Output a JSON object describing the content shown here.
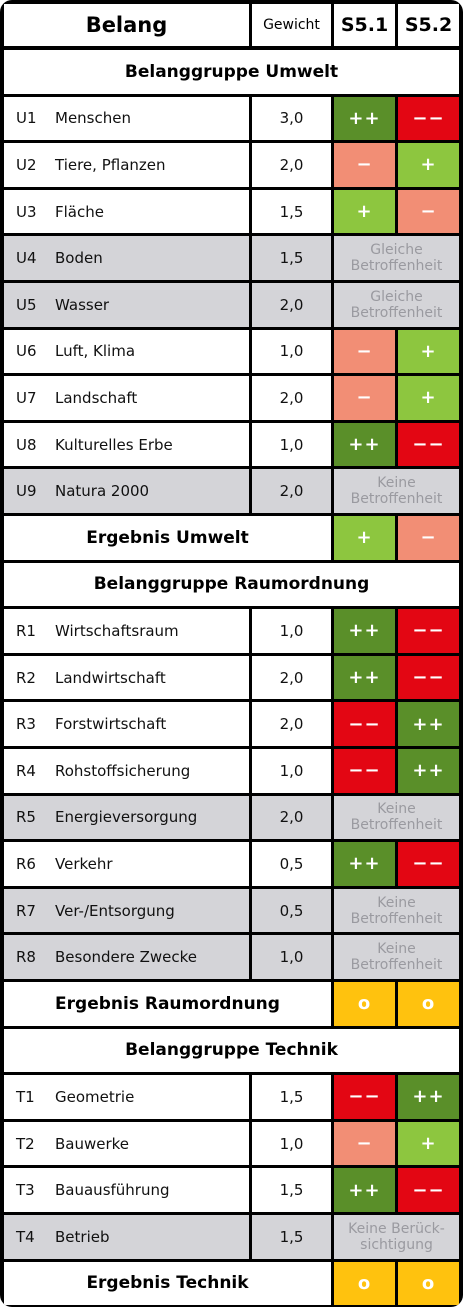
{
  "header": {
    "belang": "Belang",
    "gewicht": "Gewicht",
    "s51": "S5.1",
    "s52": "S5.2"
  },
  "colors": {
    "dark_green": "#5a8f29",
    "light_green": "#8dc63f",
    "red": "#e30613",
    "salmon": "#f28e75",
    "yellow": "#ffc20e",
    "grey_row": "#d4d4d8"
  },
  "rows": [
    {
      "type": "group",
      "label": "Belanggruppe Umwelt"
    },
    {
      "type": "item",
      "id": "U1",
      "name": "Menschen",
      "weight": "3,0",
      "s51": {
        "symbol": "++",
        "color": "#5a8f29"
      },
      "s52": {
        "symbol": "−−",
        "color": "#e30613"
      }
    },
    {
      "type": "item",
      "id": "U2",
      "name": "Tiere, Pflanzen",
      "weight": "2,0",
      "s51": {
        "symbol": "−",
        "color": "#f28e75"
      },
      "s52": {
        "symbol": "+",
        "color": "#8dc63f"
      }
    },
    {
      "type": "item",
      "id": "U3",
      "name": "Fläche",
      "weight": "1,5",
      "s51": {
        "symbol": "+",
        "color": "#8dc63f"
      },
      "s52": {
        "symbol": "−",
        "color": "#f28e75"
      }
    },
    {
      "type": "inactive",
      "id": "U4",
      "name": "Boden",
      "weight": "1,5",
      "note": "Gleiche Betroffenheit"
    },
    {
      "type": "inactive",
      "id": "U5",
      "name": "Wasser",
      "weight": "2,0",
      "note": "Gleiche Betroffenheit"
    },
    {
      "type": "item",
      "id": "U6",
      "name": "Luft, Klima",
      "weight": "1,0",
      "s51": {
        "symbol": "−",
        "color": "#f28e75"
      },
      "s52": {
        "symbol": "+",
        "color": "#8dc63f"
      }
    },
    {
      "type": "item",
      "id": "U7",
      "name": "Landschaft",
      "weight": "2,0",
      "s51": {
        "symbol": "−",
        "color": "#f28e75"
      },
      "s52": {
        "symbol": "+",
        "color": "#8dc63f"
      }
    },
    {
      "type": "item",
      "id": "U8",
      "name": "Kulturelles Erbe",
      "weight": "1,0",
      "s51": {
        "symbol": "++",
        "color": "#5a8f29"
      },
      "s52": {
        "symbol": "−−",
        "color": "#e30613"
      }
    },
    {
      "type": "inactive",
      "id": "U9",
      "name": "Natura 2000",
      "weight": "2,0",
      "note": "Keine Betroffenheit"
    },
    {
      "type": "result",
      "label": "Ergebnis Umwelt",
      "s51": {
        "symbol": "+",
        "color": "#8dc63f"
      },
      "s52": {
        "symbol": "−",
        "color": "#f28e75"
      }
    },
    {
      "type": "group",
      "label": "Belanggruppe Raumordnung"
    },
    {
      "type": "item",
      "id": "R1",
      "name": "Wirtschaftsraum",
      "weight": "1,0",
      "s51": {
        "symbol": "++",
        "color": "#5a8f29"
      },
      "s52": {
        "symbol": "−−",
        "color": "#e30613"
      }
    },
    {
      "type": "item",
      "id": "R2",
      "name": "Landwirtschaft",
      "weight": "2,0",
      "s51": {
        "symbol": "++",
        "color": "#5a8f29"
      },
      "s52": {
        "symbol": "−−",
        "color": "#e30613"
      }
    },
    {
      "type": "item",
      "id": "R3",
      "name": "Forstwirtschaft",
      "weight": "2,0",
      "s51": {
        "symbol": "−−",
        "color": "#e30613"
      },
      "s52": {
        "symbol": "++",
        "color": "#5a8f29"
      }
    },
    {
      "type": "item",
      "id": "R4",
      "name": "Rohstoffsicherung",
      "weight": "1,0",
      "s51": {
        "symbol": "−−",
        "color": "#e30613"
      },
      "s52": {
        "symbol": "++",
        "color": "#5a8f29"
      }
    },
    {
      "type": "inactive",
      "id": "R5",
      "name": "Energieversorgung",
      "weight": "2,0",
      "note": "Keine Betroffenheit"
    },
    {
      "type": "item",
      "id": "R6",
      "name": "Verkehr",
      "weight": "0,5",
      "s51": {
        "symbol": "++",
        "color": "#5a8f29"
      },
      "s52": {
        "symbol": "−−",
        "color": "#e30613"
      }
    },
    {
      "type": "inactive",
      "id": "R7",
      "name": "Ver-/Entsorgung",
      "weight": "0,5",
      "note": "Keine Betroffenheit"
    },
    {
      "type": "inactive",
      "id": "R8",
      "name": "Besondere Zwecke",
      "weight": "1,0",
      "note": "Keine Betroffenheit"
    },
    {
      "type": "result",
      "label": "Ergebnis Raumordnung",
      "s51": {
        "symbol": "o",
        "color": "#ffc20e"
      },
      "s52": {
        "symbol": "o",
        "color": "#ffc20e"
      }
    },
    {
      "type": "group",
      "label": "Belanggruppe Technik"
    },
    {
      "type": "item",
      "id": "T1",
      "name": "Geometrie",
      "weight": "1,5",
      "s51": {
        "symbol": "−−",
        "color": "#e30613"
      },
      "s52": {
        "symbol": "++",
        "color": "#5a8f29"
      }
    },
    {
      "type": "item",
      "id": "T2",
      "name": "Bauwerke",
      "weight": "1,0",
      "s51": {
        "symbol": "−",
        "color": "#f28e75"
      },
      "s52": {
        "symbol": "+",
        "color": "#8dc63f"
      }
    },
    {
      "type": "item",
      "id": "T3",
      "name": "Bauausführung",
      "weight": "1,5",
      "s51": {
        "symbol": "++",
        "color": "#5a8f29"
      },
      "s52": {
        "symbol": "−−",
        "color": "#e30613"
      }
    },
    {
      "type": "inactive",
      "id": "T4",
      "name": "Betrieb",
      "weight": "1,5",
      "note": "Keine Berück-sichtigung"
    },
    {
      "type": "result",
      "label": "Ergebnis Technik",
      "s51": {
        "symbol": "o",
        "color": "#ffc20e"
      },
      "s52": {
        "symbol": "o",
        "color": "#ffc20e"
      }
    }
  ]
}
